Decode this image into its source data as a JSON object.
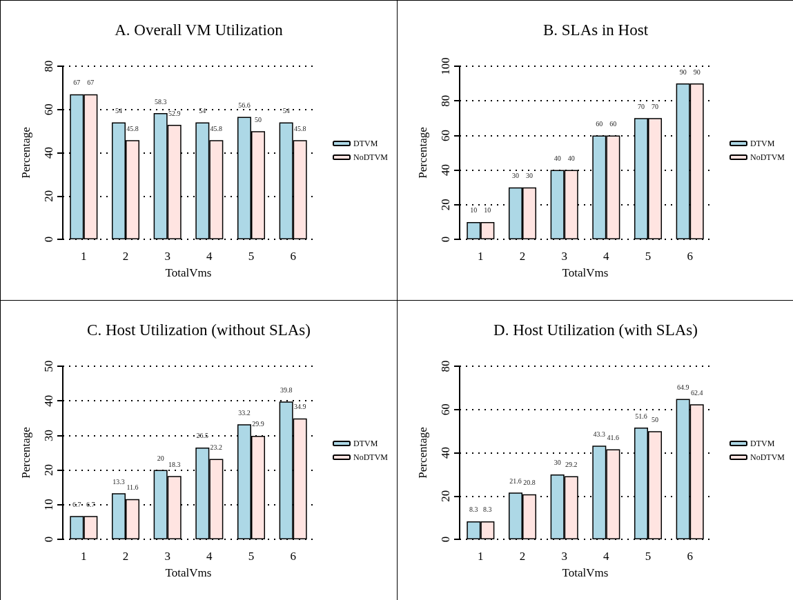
{
  "chart_data": [
    {
      "type": "bar",
      "title": "A. Overall VM Utilization",
      "xlabel": "TotalVms",
      "ylabel": "Percentage",
      "categories": [
        "1",
        "2",
        "3",
        "4",
        "5",
        "6"
      ],
      "series": [
        {
          "name": "DTVM",
          "color": "#add8e6",
          "values": [
            67,
            54,
            58.3,
            54,
            56.6,
            54
          ]
        },
        {
          "name": "NoDTVM",
          "color": "#ffe4e1",
          "values": [
            67,
            45.8,
            52.9,
            45.8,
            50,
            45.8
          ]
        }
      ],
      "ylim": [
        0,
        80
      ],
      "yticks": [
        0,
        20,
        40,
        60,
        80
      ],
      "grid": "y",
      "legend": "right",
      "data_labels": true
    },
    {
      "type": "bar",
      "title": "B. SLAs in Host",
      "xlabel": "TotalVms",
      "ylabel": "Percentage",
      "categories": [
        "1",
        "2",
        "3",
        "4",
        "5",
        "6"
      ],
      "series": [
        {
          "name": "DTVM",
          "color": "#add8e6",
          "values": [
            10,
            30,
            40,
            60,
            70,
            90
          ]
        },
        {
          "name": "NoDTVM",
          "color": "#ffe4e1",
          "values": [
            10,
            30,
            40,
            60,
            70,
            90
          ]
        }
      ],
      "ylim": [
        0,
        100
      ],
      "yticks": [
        0,
        20,
        40,
        60,
        80,
        100
      ],
      "grid": "y",
      "legend": "right",
      "data_labels": true
    },
    {
      "type": "bar",
      "title": "C. Host Utilization (without SLAs)",
      "xlabel": "TotalVms",
      "ylabel": "Percentage",
      "categories": [
        "1",
        "2",
        "3",
        "4",
        "5",
        "6"
      ],
      "series": [
        {
          "name": "DTVM",
          "color": "#add8e6",
          "values": [
            6.7,
            13.3,
            20,
            26.5,
            33.2,
            39.8
          ]
        },
        {
          "name": "NoDTVM",
          "color": "#ffe4e1",
          "values": [
            6.7,
            11.6,
            18.3,
            23.2,
            29.9,
            34.9
          ]
        }
      ],
      "ylim": [
        0,
        50
      ],
      "yticks": [
        0,
        10,
        20,
        30,
        40,
        50
      ],
      "grid": "y",
      "legend": "right",
      "data_labels": true
    },
    {
      "type": "bar",
      "title": "D. Host Utilization (with SLAs)",
      "xlabel": "TotalVms",
      "ylabel": "Percentage",
      "categories": [
        "1",
        "2",
        "3",
        "4",
        "5",
        "6"
      ],
      "series": [
        {
          "name": "DTVM",
          "color": "#add8e6",
          "values": [
            8.3,
            21.6,
            30,
            43.3,
            51.6,
            64.9
          ]
        },
        {
          "name": "NoDTVM",
          "color": "#ffe4e1",
          "values": [
            8.3,
            20.8,
            29.2,
            41.6,
            50,
            62.4
          ]
        }
      ],
      "ylim": [
        0,
        80
      ],
      "yticks": [
        0,
        20,
        40,
        60,
        80
      ],
      "grid": "y",
      "legend": "right",
      "data_labels": true
    }
  ]
}
